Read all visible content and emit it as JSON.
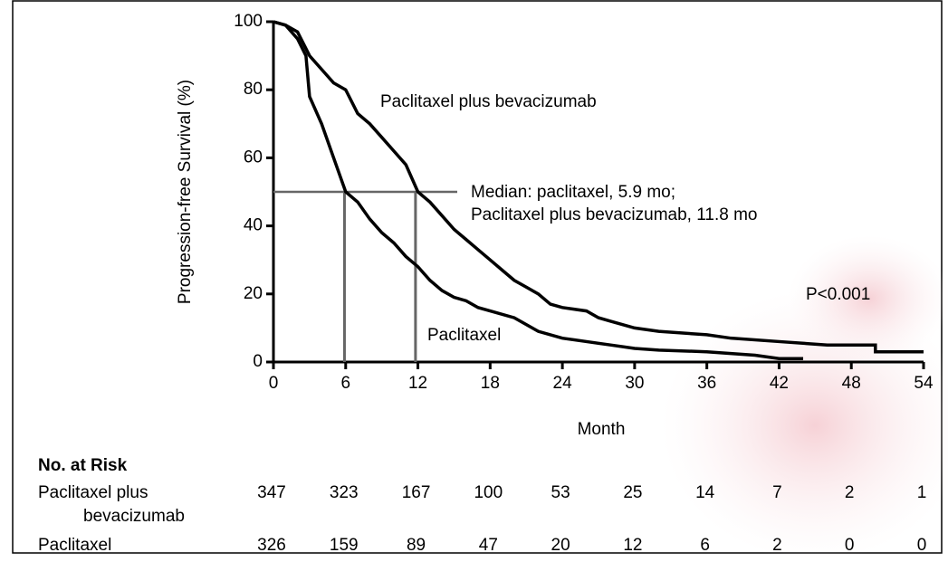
{
  "chart_data": {
    "type": "line",
    "x_label": "Month",
    "y_label": "Progression-free Survival (%)",
    "xlim": [
      0,
      54
    ],
    "ylim": [
      0,
      100
    ],
    "xticks": [
      0,
      6,
      12,
      18,
      24,
      30,
      36,
      42,
      48,
      54
    ],
    "yticks": [
      0,
      20,
      40,
      60,
      80,
      100
    ],
    "series": [
      {
        "name": "Paclitaxel plus bevacizumab",
        "color": "#000000",
        "x": [
          0,
          1,
          2,
          3,
          4,
          5,
          6,
          7,
          8,
          9,
          10,
          11,
          12,
          13,
          14,
          15,
          16,
          17,
          18,
          19,
          20,
          21,
          22,
          23,
          24,
          26,
          27,
          28,
          30,
          32,
          36,
          38,
          42,
          46,
          50,
          50,
          54
        ],
        "values": [
          100,
          99,
          97,
          90,
          86,
          82,
          80,
          73,
          70,
          66,
          62,
          58,
          50,
          47,
          43,
          39,
          36,
          33,
          30,
          27,
          24,
          22,
          20,
          17,
          16,
          15,
          13,
          12,
          10,
          9,
          8,
          7,
          6,
          5,
          5,
          3,
          3
        ]
      },
      {
        "name": "Paclitaxel",
        "color": "#000000",
        "x": [
          0,
          1,
          2,
          2.7,
          3,
          4,
          5,
          6,
          7,
          8,
          9,
          10,
          11,
          12,
          13,
          14,
          15,
          16,
          17,
          18,
          20,
          21,
          22,
          24,
          26,
          28,
          30,
          32,
          36,
          40,
          42,
          44
        ],
        "values": [
          100,
          99,
          95,
          90,
          78,
          70,
          60,
          50,
          47,
          42,
          38,
          35,
          31,
          28,
          24,
          21,
          19,
          18,
          16,
          15,
          13,
          11,
          9,
          7,
          6,
          5,
          4,
          3.5,
          3,
          2,
          1,
          1
        ]
      }
    ],
    "medians": {
      "y": 50,
      "x": [
        5.9,
        11.8
      ],
      "color": "#666666"
    },
    "annotations": [
      "Paclitaxel plus bevacizumab",
      "Median: paclitaxel, 5.9 mo;",
      "Paclitaxel plus bevacizumab, 11.8 mo",
      "P<0.001",
      "Paclitaxel"
    ],
    "risk_table": {
      "title": "No. at Risk",
      "rows": [
        {
          "name": [
            "Paclitaxel plus",
            "bevacizumab"
          ],
          "values": [
            347,
            323,
            167,
            100,
            53,
            25,
            14,
            7,
            2,
            1
          ]
        },
        {
          "name": [
            "Paclitaxel"
          ],
          "values": [
            326,
            159,
            89,
            47,
            20,
            12,
            6,
            2,
            0,
            0
          ]
        }
      ]
    }
  }
}
